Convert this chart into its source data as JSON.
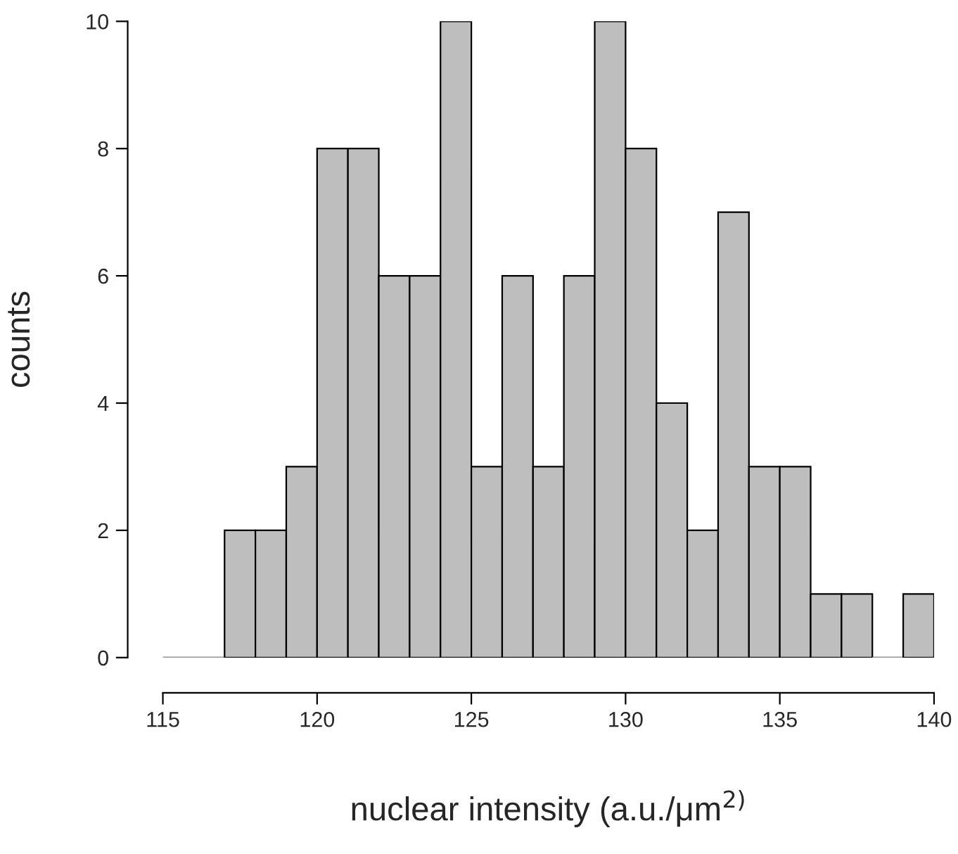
{
  "chart_data": {
    "type": "histogram",
    "xlabel": "nuclear intensity (a.u./μm$^{2)}$",
    "ylabel": "counts",
    "bins": [
      115,
      116,
      117,
      118,
      119,
      120,
      121,
      122,
      123,
      124,
      125,
      126,
      127,
      128,
      129,
      130,
      131,
      132,
      133,
      134,
      135,
      136,
      137,
      138,
      139,
      140
    ],
    "values": [
      0,
      0,
      2,
      2,
      3,
      8,
      8,
      6,
      6,
      10,
      3,
      6,
      3,
      6,
      10,
      8,
      4,
      2,
      7,
      3,
      3,
      1,
      1,
      0,
      1
    ],
    "color": "#bebebe",
    "xlim": [
      115,
      140
    ],
    "xticks": [
      115,
      120,
      125,
      130,
      135,
      140
    ],
    "ylim": [
      0,
      10
    ],
    "yticks": [
      0,
      2,
      4,
      6,
      8,
      10
    ],
    "grid": false
  }
}
